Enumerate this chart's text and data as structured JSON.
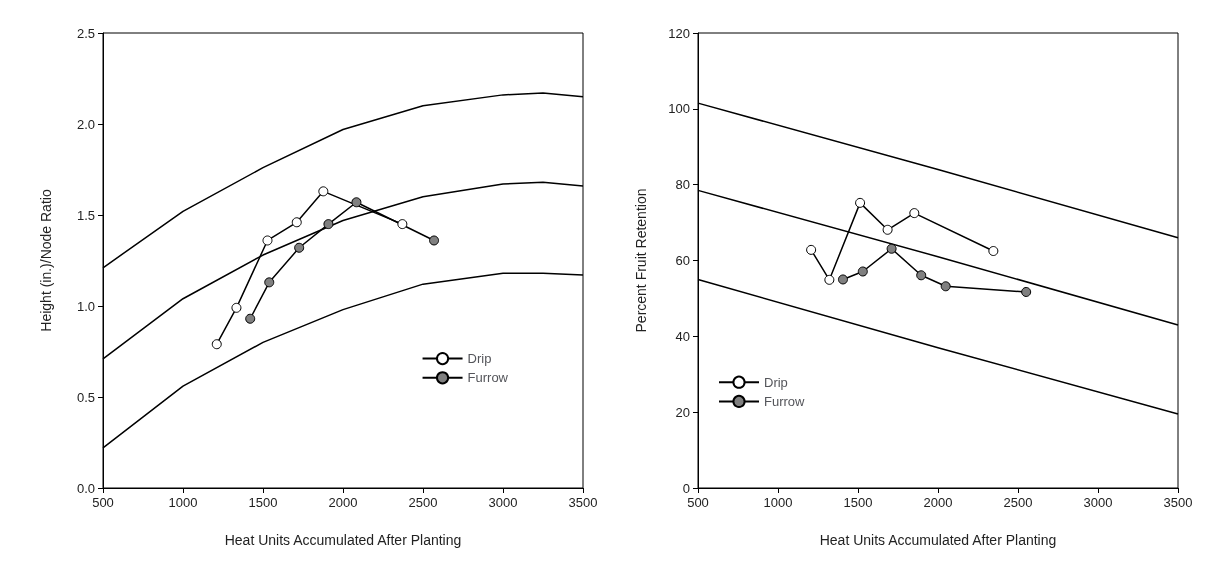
{
  "chart_data": [
    {
      "type": "line",
      "xlabel": "Heat Units Accumulated After Planting",
      "ylabel": "Height (in.)/Node Ratio",
      "xlim": [
        500,
        3500
      ],
      "xticks": [
        500,
        1000,
        1500,
        2000,
        2500,
        3000,
        3500
      ],
      "ylim": [
        0,
        2.5
      ],
      "yticks": [
        {
          "value": 0,
          "label": "0.0"
        },
        0.5,
        {
          "value": 1,
          "label": "1.0"
        },
        1.5,
        {
          "value": 2,
          "label": "2.0"
        },
        2.5
      ],
      "grid": false,
      "legend": "right",
      "marker": "circle",
      "line_style": "solid",
      "series": [
        {
          "color": "#000000",
          "marker": "none",
          "x": [
            500,
            1000,
            1500,
            2000,
            2500,
            3000,
            3250,
            3500
          ],
          "values": [
            1.21,
            1.52,
            1.76,
            1.97,
            2.1,
            2.16,
            2.17,
            2.15
          ]
        },
        {
          "color": "#000000",
          "marker": "none",
          "x": [
            500,
            1000,
            1500,
            2000,
            2500,
            3000,
            3250,
            3500
          ],
          "values": [
            0.71,
            1.04,
            1.28,
            1.47,
            1.6,
            1.67,
            1.68,
            1.66
          ]
        },
        {
          "color": "#000000",
          "marker": "none",
          "x": [
            500,
            1000,
            1500,
            2000,
            2500,
            3000,
            3250,
            3500
          ],
          "values": [
            0.22,
            0.56,
            0.8,
            0.98,
            1.12,
            1.18,
            1.18,
            1.17
          ]
        },
        {
          "name": "Drip",
          "color": "#ffffff",
          "x": [
            1211,
            1334,
            1528,
            1711,
            1877,
            2371
          ],
          "values": [
            0.79,
            0.99,
            1.36,
            1.46,
            1.63,
            1.45
          ]
        },
        {
          "name": "Furrow",
          "color": "#808080",
          "x": [
            1420,
            1539,
            1726,
            1909,
            2084,
            2569
          ],
          "values": [
            0.93,
            1.13,
            1.32,
            1.45,
            1.57,
            1.36
          ]
        }
      ]
    },
    {
      "type": "line",
      "xlabel": "Heat Units Accumulated After Planting",
      "ylabel": "Percent Fruit Retention",
      "xlim": [
        500,
        3500
      ],
      "xticks": [
        500,
        1000,
        1500,
        2000,
        2500,
        3000,
        3500
      ],
      "ylim": [
        0,
        120
      ],
      "yticks": [
        0,
        20,
        40,
        60,
        80,
        100,
        120
      ],
      "grid": false,
      "legend": "bottom left",
      "marker": "circle",
      "line_style": "solid",
      "series": [
        {
          "color": "#000000",
          "marker": "none",
          "x": [
            500,
            2000,
            3500
          ],
          "values": [
            101.5,
            84,
            66
          ]
        },
        {
          "color": "#000000",
          "marker": "none",
          "x": [
            500,
            2000,
            3500
          ],
          "values": [
            78.5,
            61,
            43
          ]
        },
        {
          "color": "#000000",
          "marker": "none",
          "x": [
            500,
            2000,
            3500
          ],
          "values": [
            55,
            37,
            19.5
          ]
        },
        {
          "name": "Drip",
          "color": "#ffffff",
          "x": [
            1207,
            1321,
            1513,
            1685,
            1852,
            2346
          ],
          "values": [
            62.8,
            54.9,
            75.2,
            68.1,
            72.5,
            62.5
          ]
        },
        {
          "name": "Furrow",
          "color": "#808080",
          "x": [
            1406,
            1530,
            1710,
            1895,
            2048,
            2551
          ],
          "values": [
            55,
            57.1,
            63.1,
            56.1,
            53.2,
            51.7
          ]
        }
      ]
    }
  ]
}
